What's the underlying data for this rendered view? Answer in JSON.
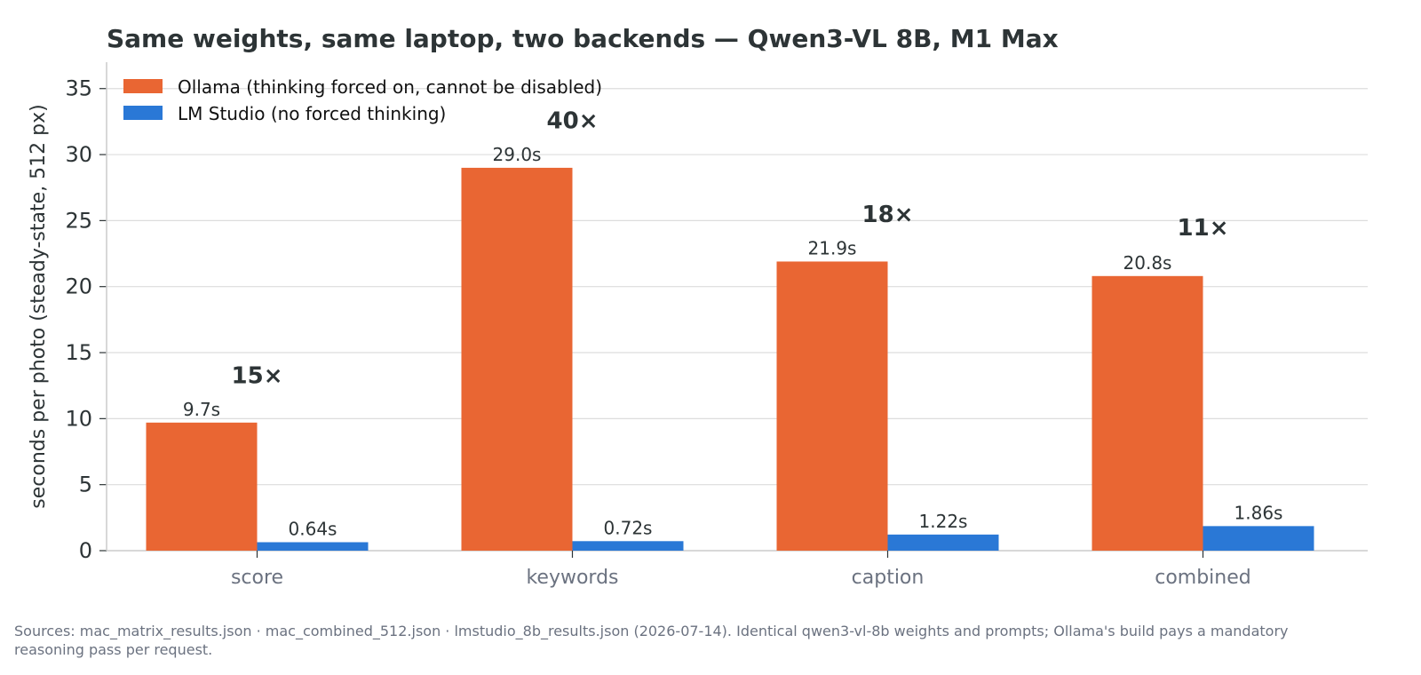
{
  "chart_data": {
    "type": "bar",
    "title": "Same weights, same laptop, two backends — Qwen3-VL 8B, M1 Max",
    "ylabel": "seconds per photo (steady-state, 512 px)",
    "xlabel": "",
    "categories": [
      "score",
      "keywords",
      "caption",
      "combined"
    ],
    "ylim": [
      0,
      37
    ],
    "yticks": [
      0,
      5,
      10,
      15,
      20,
      25,
      30,
      35
    ],
    "grid": true,
    "legend_position": "top-left",
    "series": [
      {
        "name": "Ollama (thinking forced on, cannot be disabled)",
        "color": "#e96633",
        "values": [
          9.7,
          29.0,
          21.9,
          20.8
        ],
        "labels": [
          "9.7s",
          "29.0s",
          "21.9s",
          "20.8s"
        ]
      },
      {
        "name": "LM Studio (no forced thinking)",
        "color": "#2a78d6",
        "values": [
          0.64,
          0.72,
          1.22,
          1.86
        ],
        "labels": [
          "0.64s",
          "0.72s",
          "1.22s",
          "1.86s"
        ]
      }
    ],
    "annotations": [
      {
        "category": "score",
        "text": "15×",
        "y": 13.3
      },
      {
        "category": "keywords",
        "text": "40×",
        "y": 32.6
      },
      {
        "category": "caption",
        "text": "18×",
        "y": 25.5
      },
      {
        "category": "combined",
        "text": "11×",
        "y": 24.5
      }
    ]
  },
  "footer": {
    "source": "Sources: mac_matrix_results.json · mac_combined_512.json · lmstudio_8b_results.json (2026-07-14). Identical qwen3-vl-8b weights and prompts; Ollama's build pays a mandatory reasoning pass per request."
  },
  "colors": {
    "grid": "#dddddd",
    "axis": "#cccccc",
    "text": "#2d3436",
    "muted": "#6b7280"
  }
}
